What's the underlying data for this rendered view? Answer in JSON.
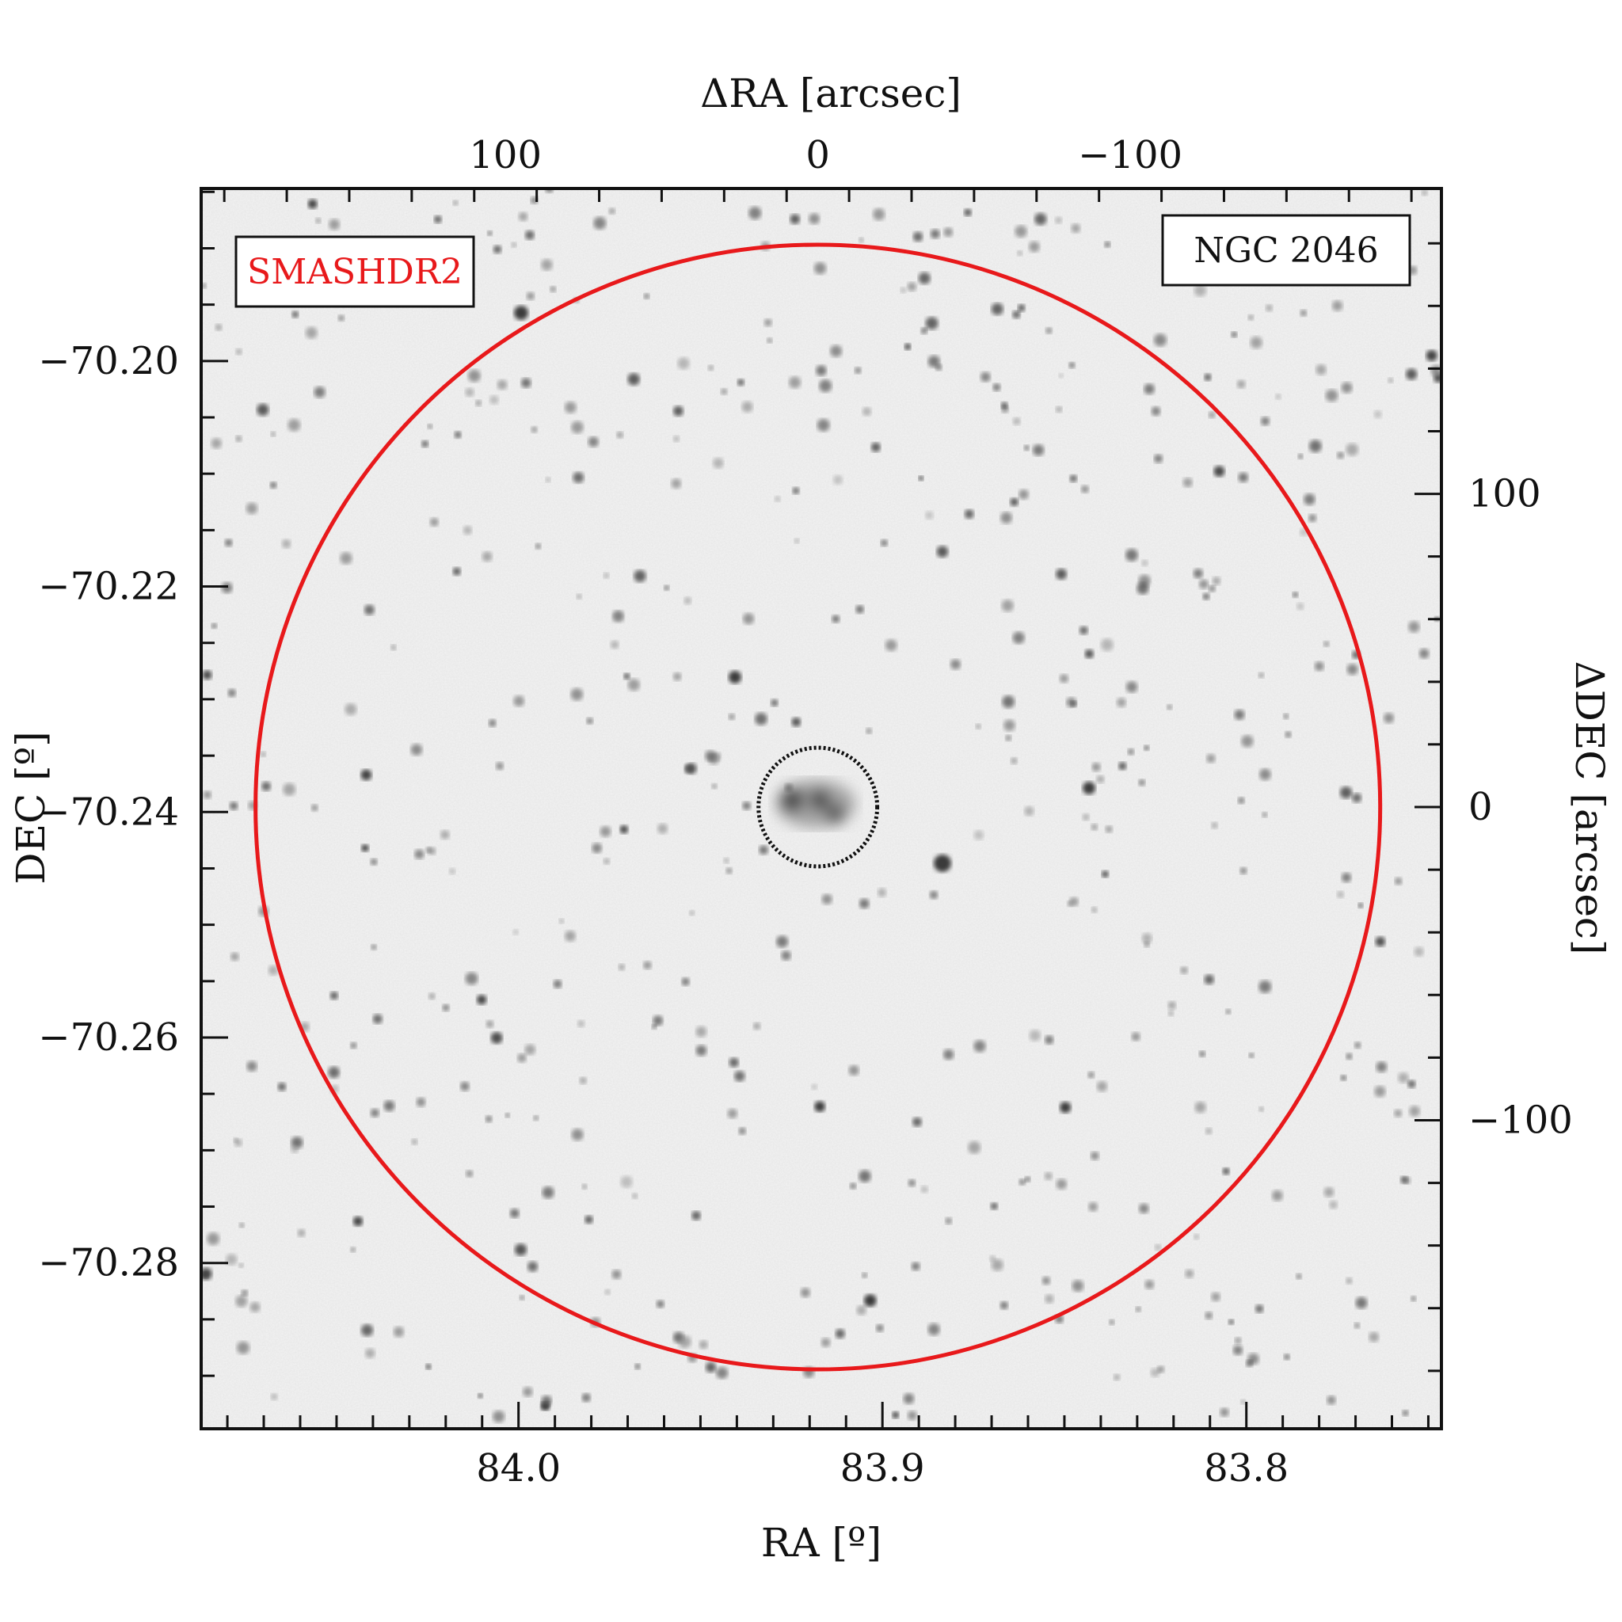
{
  "chart_data": {
    "type": "image",
    "survey_label": "SMASHDR2",
    "object_label": "NGC 2046",
    "colors": {
      "survey_label": "#e8191b",
      "aperture_circle": "#e8191b",
      "core_circle": "#111111",
      "frame": "#111111"
    },
    "axes": {
      "bottom": {
        "title": "RA [º]",
        "ticks": [
          {
            "value": 84.0,
            "label": "84.0"
          },
          {
            "value": 83.9,
            "label": "83.9"
          },
          {
            "value": 83.8,
            "label": "83.8"
          }
        ],
        "range": [
          84.0872,
          83.7464
        ]
      },
      "left": {
        "title": "DEC [º]",
        "ticks": [
          {
            "value": -70.2,
            "label": "−70.20"
          },
          {
            "value": -70.22,
            "label": "−70.22"
          },
          {
            "value": -70.24,
            "label": "−70.24"
          },
          {
            "value": -70.26,
            "label": "−70.26"
          },
          {
            "value": -70.28,
            "label": "−70.28"
          }
        ],
        "range": [
          -70.2947,
          -70.1847
        ]
      },
      "top": {
        "title": "ΔRA [arcsec]",
        "ticks": [
          {
            "value": 100,
            "label": "100"
          },
          {
            "value": 0,
            "label": "0"
          },
          {
            "value": -100,
            "label": "−100"
          }
        ],
        "range": [
          197.4,
          -199.6
        ]
      },
      "right": {
        "title": "ΔDEC [arcsec]",
        "ticks": [
          {
            "value": 100,
            "label": "100"
          },
          {
            "value": 0,
            "label": "0"
          },
          {
            "value": -100,
            "label": "−100"
          }
        ],
        "range": [
          -198.5,
          197.5
        ]
      }
    },
    "circles": [
      {
        "name": "aperture",
        "center_arcsec": [
          0,
          0
        ],
        "radius_arcsec": 180
      },
      {
        "name": "core",
        "center_arcsec": [
          0,
          0
        ],
        "radius_arcsec": 19
      }
    ]
  }
}
